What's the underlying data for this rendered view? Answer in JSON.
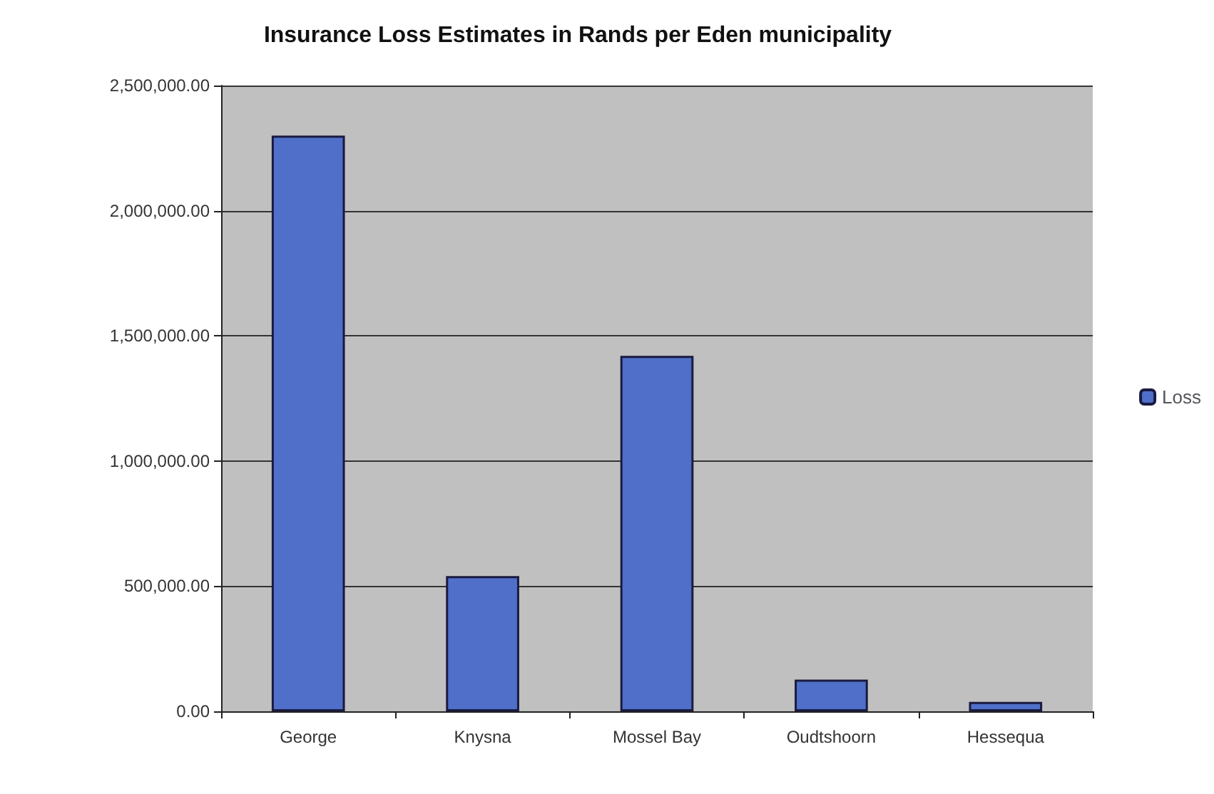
{
  "chart_data": {
    "type": "bar",
    "title": "Insurance Loss Estimates in Rands per Eden municipality",
    "categories": [
      "George",
      "Knysna",
      "Mossel Bay",
      "Oudtshoorn",
      "Hessequa"
    ],
    "series": [
      {
        "name": "Loss",
        "color": "#4f6fc8",
        "values": [
          2300000,
          540000,
          1420000,
          127000,
          38000
        ]
      }
    ],
    "ylim": [
      0,
      2500000
    ],
    "yticks": [
      {
        "value": 0,
        "label": "0.00"
      },
      {
        "value": 500000,
        "label": "500,000.00"
      },
      {
        "value": 1000000,
        "label": "1,000,000.00"
      },
      {
        "value": 1500000,
        "label": "1,500,000.00"
      },
      {
        "value": 2000000,
        "label": "2,000,000.00"
      },
      {
        "value": 2500000,
        "label": "2,500,000.00"
      }
    ],
    "grid": "y",
    "legend": "right"
  }
}
